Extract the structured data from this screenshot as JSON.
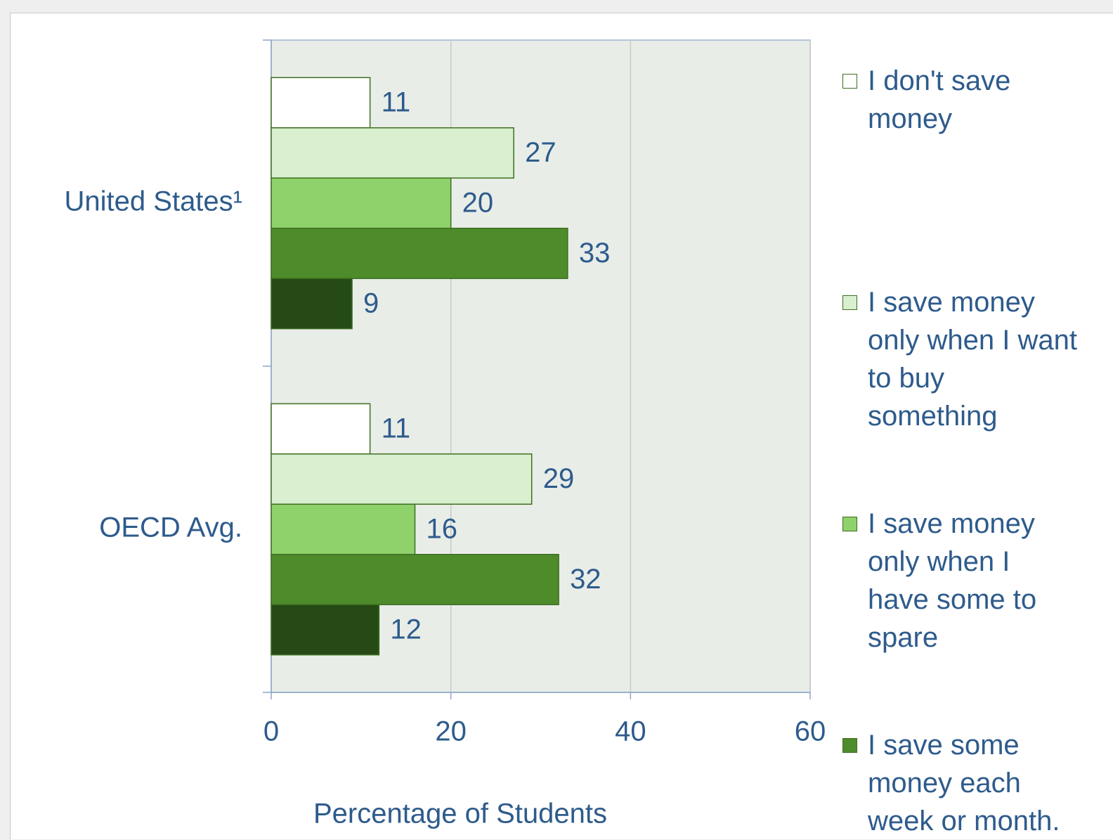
{
  "chart_data": {
    "type": "barh",
    "categories": [
      "United States¹",
      "OECD Avg."
    ],
    "series": [
      {
        "name": "I don't save money",
        "color": "#ffffff",
        "values": [
          11,
          11
        ]
      },
      {
        "name": "I save money only when I want to buy something",
        "color": "#d9efcf",
        "values": [
          27,
          29
        ]
      },
      {
        "name": "I save money only when I have some to spare",
        "color": "#8fd16b",
        "values": [
          20,
          16
        ]
      },
      {
        "name": "I save some money each week or month.",
        "color": "#4e8b2b",
        "values": [
          33,
          32
        ]
      },
      {
        "color": "#264a15",
        "values": [
          9,
          12
        ]
      }
    ],
    "x_label": "Percentage of Students",
    "xlim": [
      0,
      60
    ],
    "xticks": [
      0,
      20,
      40,
      60
    ],
    "grid": true
  }
}
